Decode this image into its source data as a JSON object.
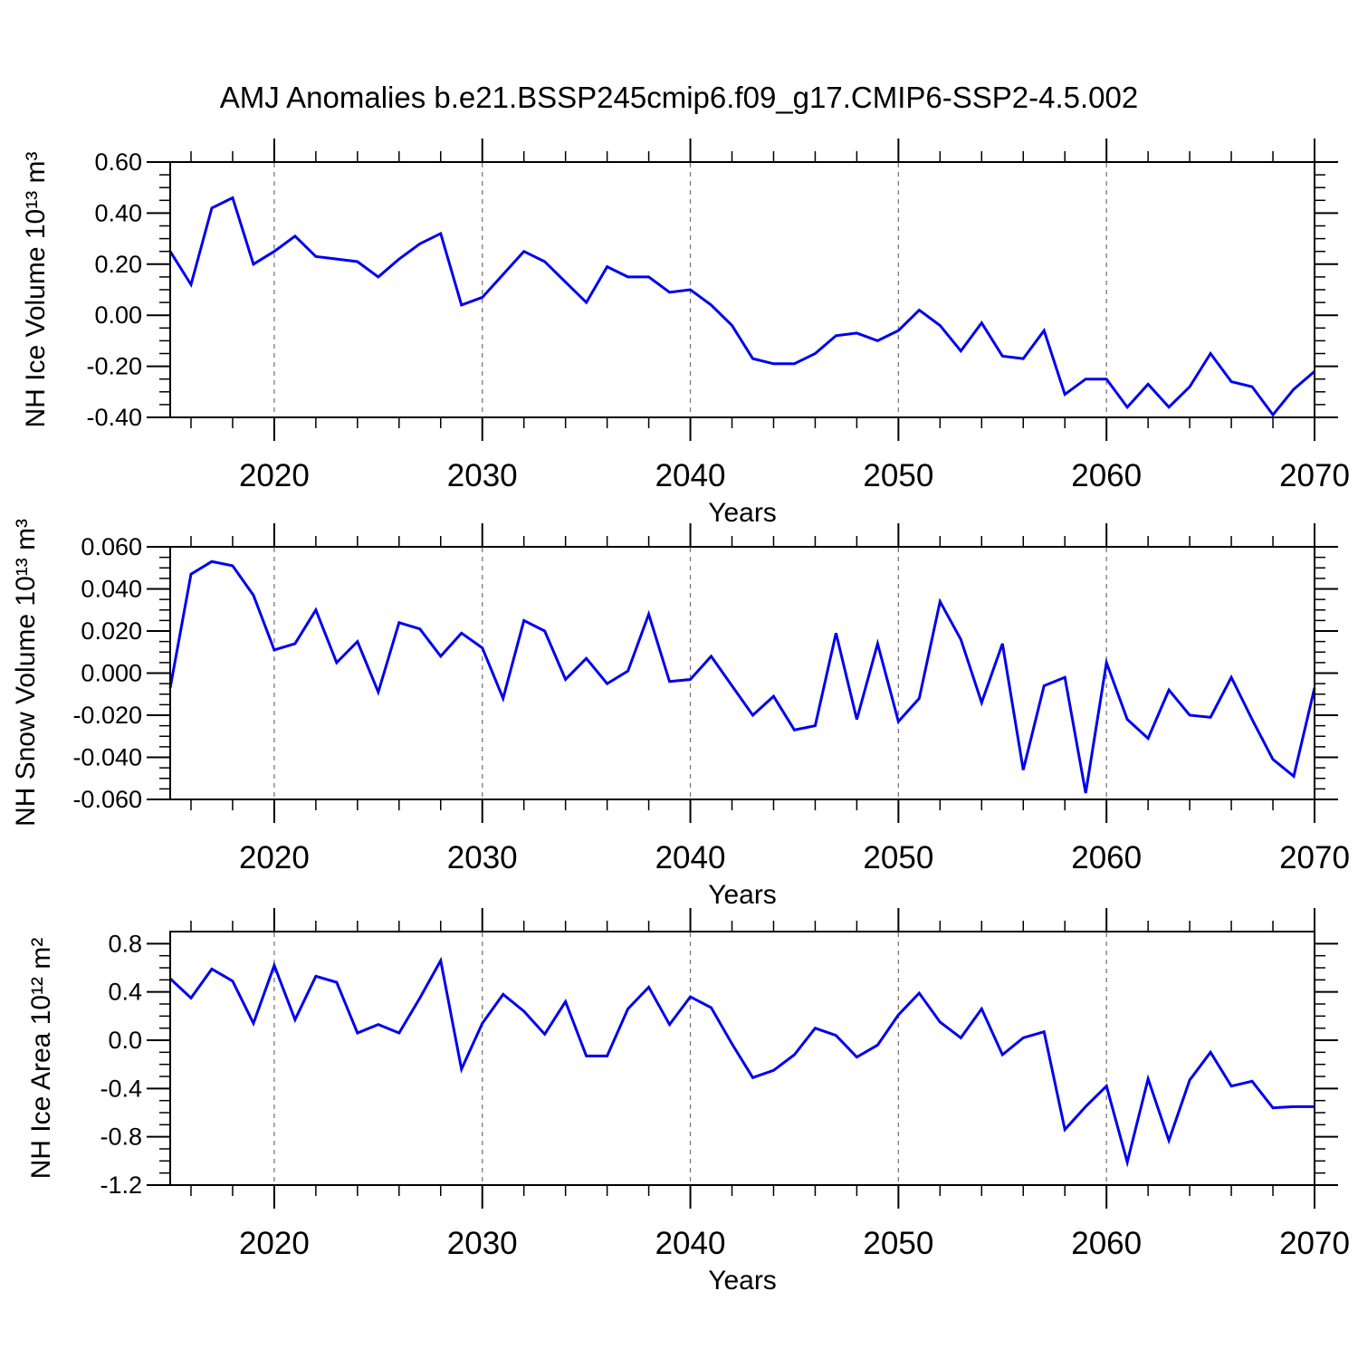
{
  "title": "AMJ Anomalies b.e21.BSSP245cmip6.f09_g17.CMIP6-SSP2-4.5.002",
  "style": {
    "line_color": "#0000ee",
    "grid_color": "#7a7a7a",
    "frame_color": "#000000",
    "text_color": "#000000"
  },
  "chart_data": [
    {
      "type": "line",
      "ylabel": "NH Ice Volume 10¹³ m³",
      "xlabel": "Years",
      "xlim": [
        2015,
        2070
      ],
      "ylim": [
        -0.4,
        0.6
      ],
      "xticks": [
        2020,
        2030,
        2040,
        2050,
        2060,
        2070
      ],
      "x_minor_step": 2,
      "grid_x": [
        2020,
        2030,
        2040,
        2050,
        2060
      ],
      "yticks": [
        0.6,
        0.4,
        0.2,
        0.0,
        -0.2,
        -0.4
      ],
      "ytick_labels": [
        "0.60",
        "0.40",
        "0.20",
        "0.00",
        "-0.20",
        "-0.40"
      ],
      "y_minor_step": 0.05,
      "x_start_year": 2015,
      "values": [
        0.25,
        0.12,
        0.42,
        0.46,
        0.2,
        0.25,
        0.31,
        0.23,
        0.22,
        0.21,
        0.15,
        0.22,
        0.28,
        0.32,
        0.04,
        0.07,
        0.16,
        0.25,
        0.21,
        0.13,
        0.05,
        0.19,
        0.15,
        0.15,
        0.09,
        0.1,
        0.04,
        -0.04,
        -0.17,
        -0.19,
        -0.19,
        -0.15,
        -0.08,
        -0.07,
        -0.1,
        -0.06,
        0.02,
        -0.04,
        -0.14,
        -0.03,
        -0.16,
        -0.17,
        -0.06,
        -0.31,
        -0.25,
        -0.25,
        -0.36,
        -0.27,
        -0.36,
        -0.28,
        -0.15,
        -0.26,
        -0.28,
        -0.39,
        -0.29,
        -0.22
      ]
    },
    {
      "type": "line",
      "ylabel": "NH Snow Volume 10¹³ m³",
      "xlabel": "Years",
      "xlim": [
        2015,
        2070
      ],
      "ylim": [
        -0.06,
        0.06
      ],
      "xticks": [
        2020,
        2030,
        2040,
        2050,
        2060,
        2070
      ],
      "x_minor_step": 2,
      "grid_x": [
        2020,
        2030,
        2040,
        2050,
        2060
      ],
      "yticks": [
        0.06,
        0.04,
        0.02,
        0.0,
        -0.02,
        -0.04,
        -0.06
      ],
      "ytick_labels": [
        "0.060",
        "0.040",
        "0.020",
        "0.000",
        "-0.020",
        "-0.040",
        "-0.060"
      ],
      "y_minor_step": 0.005,
      "x_start_year": 2015,
      "values": [
        -0.007,
        0.047,
        0.053,
        0.051,
        0.037,
        0.011,
        0.014,
        0.03,
        0.005,
        0.015,
        -0.009,
        0.024,
        0.021,
        0.008,
        0.019,
        0.012,
        -0.012,
        0.025,
        0.02,
        -0.003,
        0.007,
        -0.005,
        0.001,
        0.028,
        -0.004,
        -0.003,
        0.008,
        -0.006,
        -0.02,
        -0.011,
        -0.027,
        -0.025,
        0.019,
        -0.022,
        0.014,
        -0.023,
        -0.012,
        0.034,
        0.016,
        -0.014,
        0.014,
        -0.046,
        -0.006,
        -0.002,
        -0.057,
        0.005,
        -0.022,
        -0.031,
        -0.008,
        -0.02,
        -0.021,
        -0.002,
        -0.022,
        -0.041,
        -0.049,
        -0.007
      ]
    },
    {
      "type": "line",
      "ylabel": "NH Ice Area 10¹² m²",
      "xlabel": "Years",
      "xlim": [
        2015,
        2070
      ],
      "ylim": [
        -1.2,
        0.9
      ],
      "xticks": [
        2020,
        2030,
        2040,
        2050,
        2060,
        2070
      ],
      "x_minor_step": 2,
      "grid_x": [
        2020,
        2030,
        2040,
        2050,
        2060
      ],
      "yticks": [
        0.8,
        0.4,
        0.0,
        -0.4,
        -0.8,
        -1.2
      ],
      "ytick_labels": [
        "0.8",
        "0.4",
        "0.0",
        "-0.4",
        "-0.8",
        "-1.2"
      ],
      "y_minor_step": 0.1,
      "x_start_year": 2015,
      "values": [
        0.51,
        0.35,
        0.59,
        0.49,
        0.14,
        0.62,
        0.17,
        0.53,
        0.48,
        0.06,
        0.13,
        0.06,
        0.35,
        0.66,
        -0.24,
        0.14,
        0.38,
        0.24,
        0.05,
        0.32,
        -0.13,
        -0.13,
        0.26,
        0.44,
        0.13,
        0.36,
        0.27,
        -0.03,
        -0.31,
        -0.25,
        -0.12,
        0.1,
        0.04,
        -0.14,
        -0.04,
        0.21,
        0.39,
        0.15,
        0.02,
        0.26,
        -0.12,
        0.02,
        0.07,
        -0.74,
        -0.55,
        -0.38,
        -1.01,
        -0.32,
        -0.83,
        -0.33,
        -0.1,
        -0.38,
        -0.34,
        -0.56,
        -0.55,
        -0.55
      ]
    }
  ]
}
